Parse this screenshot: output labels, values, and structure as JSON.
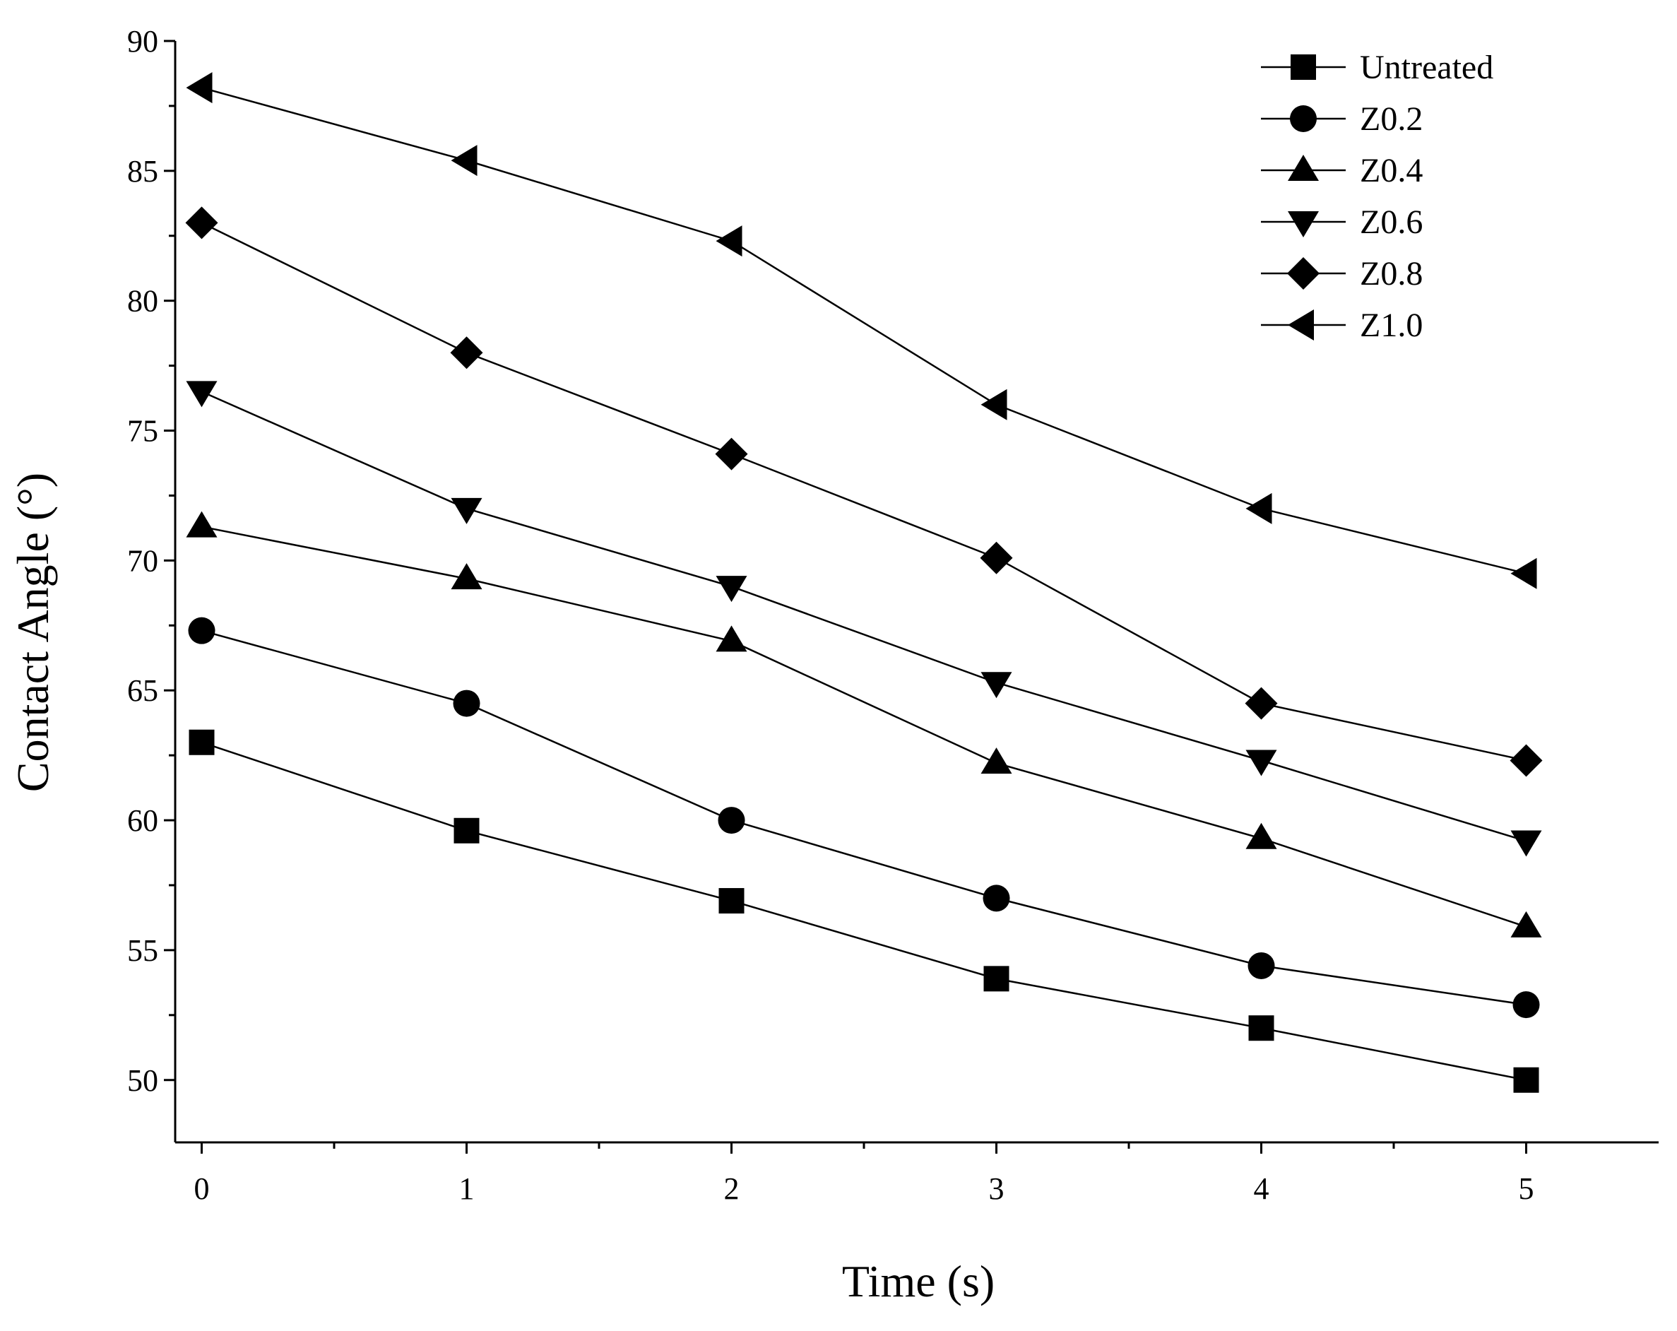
{
  "chart_data": {
    "type": "line",
    "title": "",
    "xlabel": "Time (s)",
    "ylabel": "Contact Angle (°)",
    "x": [
      0,
      1,
      2,
      3,
      4,
      5
    ],
    "xticks": [
      "0",
      "1",
      "2",
      "3",
      "4",
      "5"
    ],
    "xlim": [
      -0.1,
      5.5
    ],
    "yticks": [
      "50",
      "55",
      "60",
      "65",
      "70",
      "75",
      "80",
      "85",
      "90"
    ],
    "ylim": [
      47.6,
      90
    ],
    "grid": false,
    "legend_position": "top-right",
    "series": [
      {
        "name": "Untreated",
        "marker": "square",
        "values": [
          63.0,
          59.6,
          56.9,
          53.9,
          52.0,
          50.0
        ]
      },
      {
        "name": "Z0.2",
        "marker": "circle",
        "values": [
          67.3,
          64.5,
          60.0,
          57.0,
          54.4,
          52.9
        ]
      },
      {
        "name": "Z0.4",
        "marker": "triangle-up",
        "values": [
          71.3,
          69.3,
          66.9,
          62.2,
          59.3,
          55.9
        ]
      },
      {
        "name": "Z0.6",
        "marker": "triangle-down",
        "values": [
          76.5,
          72.0,
          69.0,
          65.3,
          62.3,
          59.2
        ]
      },
      {
        "name": "Z0.8",
        "marker": "diamond",
        "values": [
          83.0,
          78.0,
          74.1,
          70.1,
          64.5,
          62.3
        ]
      },
      {
        "name": "Z1.0",
        "marker": "triangle-left",
        "values": [
          88.2,
          85.4,
          82.3,
          76.0,
          72.0,
          69.5
        ]
      }
    ],
    "colors": {
      "line": "#000000",
      "marker": "#000000",
      "background": "#ffffff"
    }
  }
}
